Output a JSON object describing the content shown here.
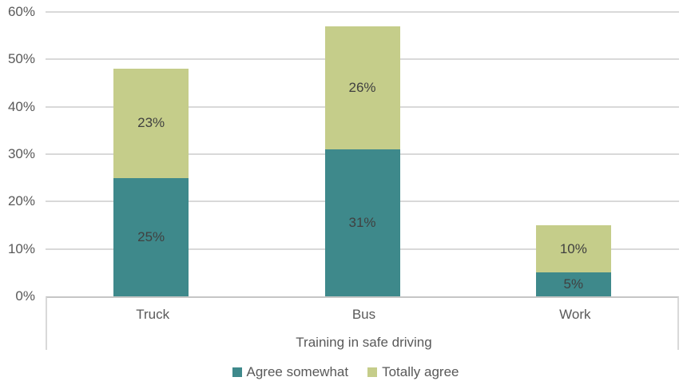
{
  "chart_data": {
    "type": "bar",
    "subtype": "stacked-column",
    "title": "",
    "xlabel": "Training in safe driving",
    "ylabel": "",
    "categories": [
      "Truck",
      "Bus",
      "Work"
    ],
    "series": [
      {
        "name": "Agree somewhat",
        "color": "#3E898B",
        "values": [
          25,
          31,
          5
        ],
        "data_labels": [
          "25%",
          "31%",
          "5%"
        ]
      },
      {
        "name": "Totally agree",
        "color": "#C5CD8A",
        "values": [
          23,
          26,
          10
        ],
        "data_labels": [
          "23%",
          "26%",
          "10%"
        ]
      }
    ],
    "ylim": [
      0,
      60
    ],
    "y_ticks": {
      "values": [
        0,
        10,
        20,
        30,
        40,
        50,
        60
      ],
      "labels": [
        "0%",
        "10%",
        "20%",
        "30%",
        "40%",
        "50%",
        "60%"
      ]
    },
    "grid": true,
    "legend_position": "bottom"
  },
  "style": {
    "background": "#FFFFFF",
    "grid_color": "#D9D9D9",
    "axis_line_color": "#C6C6C6",
    "axis_box_border_color": "#D9D9D9",
    "tick_label_color": "#595959",
    "category_label_color": "#595959",
    "axis_title_color": "#595959",
    "legend_text_color": "#595959",
    "data_label_color": "#404040"
  }
}
